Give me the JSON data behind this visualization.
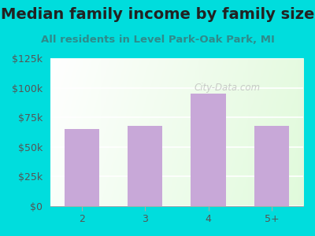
{
  "title": "Median family income by family size",
  "subtitle": "All residents in Level Park-Oak Park, MI",
  "categories": [
    "2",
    "3",
    "4",
    "5+"
  ],
  "values": [
    65000,
    68000,
    95000,
    68000
  ],
  "bar_color": "#C8A8D8",
  "title_color": "#222222",
  "subtitle_color": "#2E8B8B",
  "tick_label_color": "#555555",
  "bg_outer_color": "#00DDDD",
  "ylim": [
    0,
    125000
  ],
  "yticks": [
    0,
    25000,
    50000,
    75000,
    100000,
    125000
  ],
  "ytick_labels": [
    "$0",
    "$25k",
    "$50k",
    "$75k",
    "$100k",
    "$125k"
  ],
  "watermark": "City-Data.com",
  "title_fontsize": 14,
  "subtitle_fontsize": 9.5,
  "tick_fontsize": 9
}
